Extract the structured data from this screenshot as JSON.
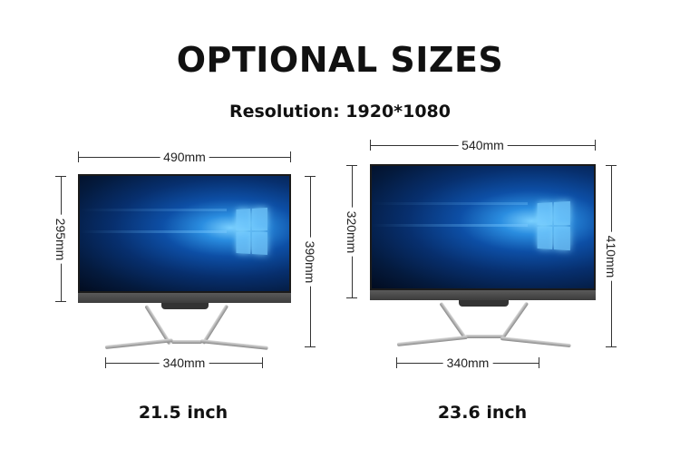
{
  "title": "OPTIONAL SIZES",
  "subtitle": "Resolution: 1920*1080",
  "models": [
    {
      "size_label": "21.5 inch",
      "width": "490mm",
      "screen_height": "295mm",
      "total_height": "390mm",
      "base_width": "340mm"
    },
    {
      "size_label": "23.6 inch",
      "width": "540mm",
      "screen_height": "320mm",
      "total_height": "410mm",
      "base_width": "340mm"
    }
  ],
  "colors": {
    "screen_blue": "#0d4fa6",
    "bezel": "#1a1a1a",
    "chin": "#4a4a4a"
  }
}
